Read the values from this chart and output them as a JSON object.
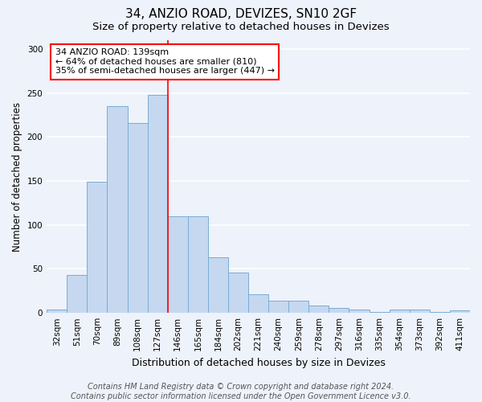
{
  "title_line1": "34, ANZIO ROAD, DEVIZES, SN10 2GF",
  "title_line2": "Size of property relative to detached houses in Devizes",
  "xlabel": "Distribution of detached houses by size in Devizes",
  "ylabel": "Number of detached properties",
  "categories": [
    "32sqm",
    "51sqm",
    "70sqm",
    "89sqm",
    "108sqm",
    "127sqm",
    "146sqm",
    "165sqm",
    "184sqm",
    "202sqm",
    "221sqm",
    "240sqm",
    "259sqm",
    "278sqm",
    "297sqm",
    "316sqm",
    "335sqm",
    "354sqm",
    "373sqm",
    "392sqm",
    "411sqm"
  ],
  "values": [
    4,
    43,
    149,
    235,
    216,
    248,
    110,
    110,
    63,
    46,
    21,
    14,
    14,
    8,
    6,
    4,
    1,
    4,
    4,
    1,
    3
  ],
  "bar_color": "#c5d8f0",
  "bar_edgecolor": "#7aadd4",
  "annotation_text": "34 ANZIO ROAD: 139sqm\n← 64% of detached houses are smaller (810)\n35% of semi-detached houses are larger (447) →",
  "annotation_box_color": "white",
  "annotation_box_edgecolor": "red",
  "vline_color": "red",
  "vline_x": 5.5,
  "ylim": [
    0,
    310
  ],
  "yticks": [
    0,
    50,
    100,
    150,
    200,
    250,
    300
  ],
  "footer_line1": "Contains HM Land Registry data © Crown copyright and database right 2024.",
  "footer_line2": "Contains public sector information licensed under the Open Government Licence v3.0.",
  "background_color": "#eef2fa",
  "grid_color": "white",
  "title_fontsize": 11,
  "subtitle_fontsize": 9.5,
  "xlabel_fontsize": 9,
  "ylabel_fontsize": 8.5,
  "tick_fontsize": 7.5,
  "footer_fontsize": 7,
  "annot_fontsize": 8
}
